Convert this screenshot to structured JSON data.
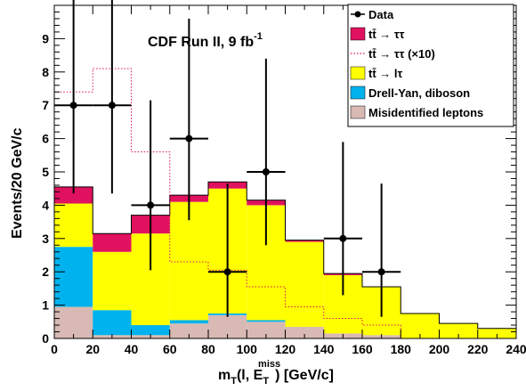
{
  "chart_data": {
    "type": "histogram",
    "annotation": "CDF Run II, 9 fb",
    "annotation_sup": "-1",
    "xlabel_main": "m",
    "xlabel_sub": "T",
    "xlabel_mid": "(l, E",
    "xlabel_sup": "miss",
    "xlabel_sub2": "T",
    "xlabel_end": ") [GeV/c]",
    "ylabel": "Events/20 GeV/c",
    "xlim": [
      0,
      240
    ],
    "ylim": [
      0,
      10
    ],
    "x_ticks": [
      "0",
      "20",
      "40",
      "60",
      "80",
      "100",
      "120",
      "140",
      "160",
      "180",
      "200",
      "220",
      "240"
    ],
    "x_tick_values": [
      0,
      20,
      40,
      60,
      80,
      100,
      120,
      140,
      160,
      180,
      200,
      220,
      240
    ],
    "y_ticks": [
      "0",
      "1",
      "2",
      "3",
      "4",
      "5",
      "6",
      "7",
      "8",
      "9"
    ],
    "y_tick_values": [
      0,
      1,
      2,
      3,
      4,
      5,
      6,
      7,
      8,
      9
    ],
    "bin_edges": [
      0,
      20,
      40,
      60,
      80,
      100,
      120,
      140,
      160,
      180,
      200,
      220,
      240
    ],
    "colors": {
      "ttbar_tautau": "#e0115f",
      "ttbar_ltau": "#ffff00",
      "drell_yan": "#00b2ee",
      "misid": "#d8b9b3",
      "ttbar_x10": "#e0115f",
      "data": "#000000"
    },
    "legend_position": "top-right",
    "legend": [
      {
        "key": "data",
        "label": "Data",
        "style": "marker"
      },
      {
        "key": "ttbar_tautau",
        "label": "tt̄ → ττ",
        "style": "fill"
      },
      {
        "key": "ttbar_x10",
        "label": "tt̄ → ττ (×10)",
        "style": "dotted"
      },
      {
        "key": "ttbar_ltau",
        "label": "tt̄ → lτ",
        "style": "fill"
      },
      {
        "key": "drell_yan",
        "label": "Drell-Yan, diboson",
        "style": "fill"
      },
      {
        "key": "misid",
        "label": "Misidentified leptons",
        "style": "fill"
      }
    ],
    "stacked_series": [
      {
        "key": "misid",
        "name": "Misidentified leptons",
        "values": [
          0.95,
          0.1,
          0.1,
          0.45,
          0.7,
          0.5,
          0.35,
          0.15,
          0.1,
          0.0,
          0.0,
          0.0
        ]
      },
      {
        "key": "drell_yan",
        "name": "Drell-Yan, diboson",
        "values": [
          1.8,
          0.75,
          0.3,
          0.1,
          0.05,
          0.05,
          0.0,
          0.0,
          0.0,
          0.0,
          0.0,
          0.0
        ]
      },
      {
        "key": "ttbar_ltau",
        "name": "tt̄ → lτ",
        "values": [
          1.3,
          1.75,
          2.75,
          3.55,
          3.75,
          3.45,
          2.55,
          1.75,
          1.45,
          0.75,
          0.45,
          0.3
        ]
      },
      {
        "key": "ttbar_tautau",
        "name": "tt̄ → ττ",
        "values": [
          0.5,
          0.55,
          0.55,
          0.2,
          0.2,
          0.15,
          0.05,
          0.05,
          0.0,
          0.0,
          0.0,
          0.0
        ]
      }
    ],
    "overlay_series": {
      "key": "ttbar_x10",
      "name": "tt̄ → ττ (×10)",
      "values": [
        7.4,
        8.1,
        5.6,
        2.3,
        2.05,
        1.55,
        0.95,
        0.6,
        0.4,
        0.0,
        0.0,
        0.0
      ]
    },
    "data_points": {
      "name": "Data",
      "x": [
        10,
        30,
        50,
        70,
        90,
        110,
        150,
        170
      ],
      "y": [
        7,
        7,
        4,
        6,
        2,
        5,
        3,
        2
      ],
      "yerr_low": [
        2.65,
        2.65,
        1.95,
        2.45,
        1.35,
        2.2,
        1.7,
        1.35
      ],
      "yerr_high": [
        3.75,
        3.75,
        3.15,
        3.6,
        2.65,
        3.4,
        2.9,
        2.65
      ],
      "xerr": 10
    }
  }
}
